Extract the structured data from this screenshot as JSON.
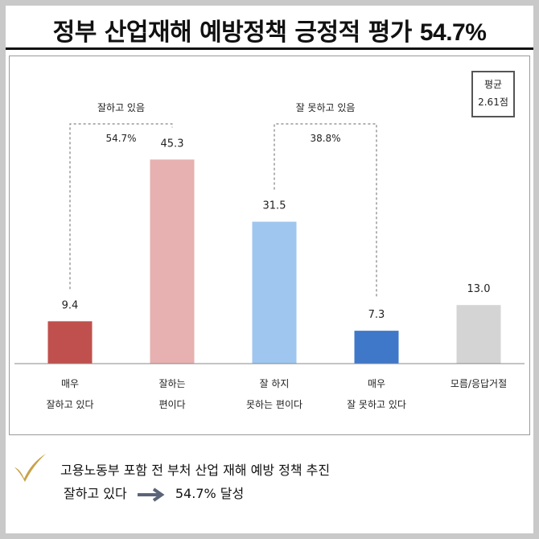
{
  "headline": {
    "text": "정부 산업재해 예방정책 긍정적 평가",
    "percent": "54.7%"
  },
  "average": {
    "label": "평균",
    "value": "2.61점"
  },
  "groups": [
    {
      "label": "잘하고 있음",
      "value": "54.7%"
    },
    {
      "label": "잘 못하고 있음",
      "value": "38.8%"
    }
  ],
  "summary": {
    "line1": "고용노동부 포함 전 부처 산업 재해 예방 정책 추진",
    "line2_prefix": "잘하고 있다",
    "line2_result": "54.7% 달성"
  },
  "chart_data": {
    "type": "bar",
    "categories": [
      [
        "매우",
        "잘하고 있다"
      ],
      [
        "잘하는",
        "편이다"
      ],
      [
        "잘 하지",
        "못하는 편이다"
      ],
      [
        "매우",
        "잘 못하고 있다"
      ],
      [
        "모름/응답거절"
      ]
    ],
    "values": [
      9.4,
      45.3,
      31.5,
      7.3,
      13.0
    ],
    "value_labels": [
      "9.4",
      "45.3",
      "31.5",
      "7.3",
      "13.0"
    ],
    "colors": [
      "#c0504d",
      "#e6b1b0",
      "#9fc6ee",
      "#3f78c8",
      "#d4d4d4"
    ],
    "ylim": [
      0,
      50
    ],
    "grid": false,
    "bracket_groups": [
      [
        0,
        1
      ],
      [
        2,
        3
      ]
    ]
  }
}
